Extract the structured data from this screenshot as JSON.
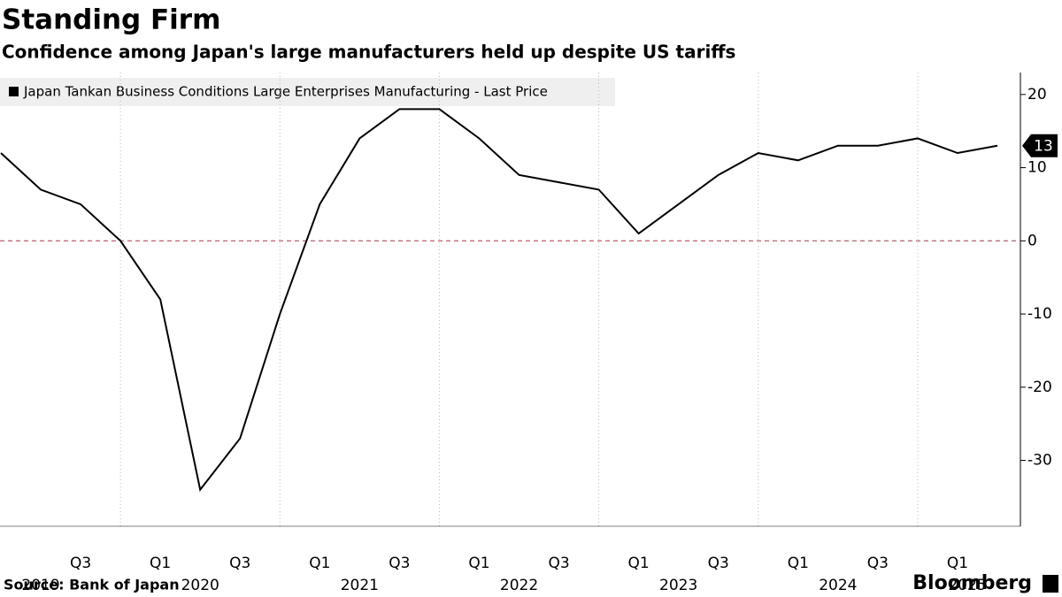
{
  "chart_data": {
    "type": "line",
    "title": "Standing Firm",
    "subtitle": "Confidence among Japan's large manufacturers held up despite US tariffs",
    "categories": [
      null,
      null,
      "Q3",
      null,
      "Q1",
      null,
      "Q3",
      null,
      "Q1",
      null,
      "Q3",
      null,
      "Q1",
      null,
      "Q3",
      null,
      "Q1",
      null,
      "Q3",
      null,
      "Q1",
      null,
      "Q3",
      null,
      "Q1",
      null
    ],
    "year_labels": [
      "2019",
      "2020",
      "2021",
      "2022",
      "2023",
      "2024",
      "2025"
    ],
    "series": [
      {
        "name": "Japan Tankan Business Conditions Large Enterprises Manufacturing - Last Price",
        "color": "#000000",
        "values": [
          12,
          7,
          5,
          0,
          -8,
          -34,
          -27,
          -10,
          5,
          14,
          18,
          18,
          14,
          9,
          8,
          7,
          1,
          5,
          9,
          12,
          11,
          13,
          13,
          14,
          12,
          13
        ]
      }
    ],
    "ylim": [
      -39,
      23
    ],
    "yticks": [
      -30,
      -20,
      -10,
      0,
      10,
      20
    ],
    "zero_line_color": "#a3384a",
    "source": "Source: Bank of Japan",
    "brand": "Bloomberg"
  }
}
